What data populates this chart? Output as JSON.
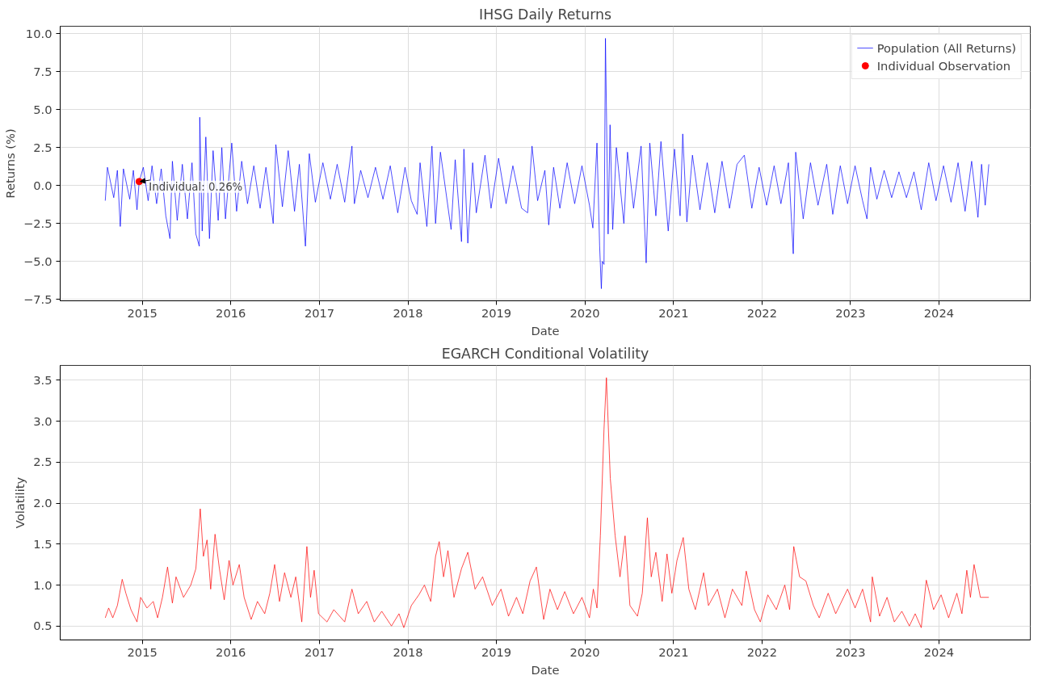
{
  "chart_data": [
    {
      "type": "line",
      "title": "IHSG Daily Returns",
      "xlabel": "Date",
      "ylabel": "Returns (%)",
      "xlim": [
        "2014-01-27",
        "2025-01-12"
      ],
      "xticks": [
        {
          "value": "2015-01-01",
          "label": "2015"
        },
        {
          "value": "2016-01-01",
          "label": "2016"
        },
        {
          "value": "2017-01-01",
          "label": "2017"
        },
        {
          "value": "2018-01-01",
          "label": "2018"
        },
        {
          "value": "2019-01-01",
          "label": "2019"
        },
        {
          "value": "2020-01-01",
          "label": "2020"
        },
        {
          "value": "2021-01-01",
          "label": "2021"
        },
        {
          "value": "2022-01-01",
          "label": "2022"
        },
        {
          "value": "2023-01-01",
          "label": "2023"
        },
        {
          "value": "2024-01-01",
          "label": "2024"
        }
      ],
      "ylim": [
        -7.6,
        10.5
      ],
      "yticks": [
        {
          "value": -7.5,
          "label": "−7.5"
        },
        {
          "value": -5,
          "label": "−5.0"
        },
        {
          "value": -2.5,
          "label": "−2.5"
        },
        {
          "value": 0,
          "label": "0.0"
        },
        {
          "value": 2.5,
          "label": "2.5"
        },
        {
          "value": 5,
          "label": "5.0"
        },
        {
          "value": 7.5,
          "label": "7.5"
        },
        {
          "value": 10,
          "label": "10.0"
        }
      ],
      "grid": true,
      "legend": "top right",
      "annotations": [
        {
          "text": "Individual: 0.26%",
          "x": "2014-12-19",
          "y": 0.26
        }
      ],
      "series": [
        {
          "name": "Population (All Returns)",
          "color": "#0000ff",
          "x": [
            "2014-08-01",
            "2014-08-10",
            "2014-09-05",
            "2014-09-20",
            "2014-10-02",
            "2014-10-15",
            "2014-11-10",
            "2014-11-25",
            "2014-12-10",
            "2014-12-19",
            "2015-01-05",
            "2015-01-25",
            "2015-02-10",
            "2015-03-01",
            "2015-03-20",
            "2015-04-08",
            "2015-04-25",
            "2015-05-05",
            "2015-05-25",
            "2015-06-15",
            "2015-07-06",
            "2015-07-25",
            "2015-08-10",
            "2015-08-24",
            "2015-08-26",
            "2015-09-05",
            "2015-09-20",
            "2015-10-05",
            "2015-10-20",
            "2015-11-10",
            "2015-11-25",
            "2015-12-10",
            "2016-01-05",
            "2016-01-25",
            "2016-02-15",
            "2016-03-10",
            "2016-04-05",
            "2016-05-01",
            "2016-05-25",
            "2016-06-24",
            "2016-07-05",
            "2016-08-01",
            "2016-08-25",
            "2016-09-20",
            "2016-10-10",
            "2016-11-04",
            "2016-11-20",
            "2016-12-15",
            "2017-01-15",
            "2017-02-15",
            "2017-03-15",
            "2017-04-15",
            "2017-05-15",
            "2017-05-25",
            "2017-06-20",
            "2017-07-20",
            "2017-08-20",
            "2017-09-20",
            "2017-10-20",
            "2017-11-20",
            "2017-12-20",
            "2018-01-15",
            "2018-02-08",
            "2018-02-20",
            "2018-03-20",
            "2018-04-10",
            "2018-04-25",
            "2018-05-15",
            "2018-06-28",
            "2018-07-15",
            "2018-08-10",
            "2018-08-20",
            "2018-09-05",
            "2018-09-25",
            "2018-10-10",
            "2018-11-15",
            "2018-12-10",
            "2019-01-10",
            "2019-02-10",
            "2019-03-10",
            "2019-04-15",
            "2019-05-10",
            "2019-05-28",
            "2019-06-20",
            "2019-07-20",
            "2019-08-05",
            "2019-08-25",
            "2019-09-20",
            "2019-10-20",
            "2019-11-20",
            "2019-12-20",
            "2020-01-20",
            "2020-02-03",
            "2020-02-20",
            "2020-03-02",
            "2020-03-09",
            "2020-03-13",
            "2020-03-20",
            "2020-03-26",
            "2020-04-06",
            "2020-04-14",
            "2020-04-25",
            "2020-05-10",
            "2020-06-10",
            "2020-06-25",
            "2020-07-20",
            "2020-08-20",
            "2020-09-10",
            "2020-09-25",
            "2020-10-20",
            "2020-11-10",
            "2020-12-10",
            "2021-01-05",
            "2021-01-28",
            "2021-02-08",
            "2021-02-25",
            "2021-03-20",
            "2021-04-20",
            "2021-05-20",
            "2021-06-20",
            "2021-07-20",
            "2021-08-20",
            "2021-09-20",
            "2021-10-20",
            "2021-11-20",
            "2021-12-20",
            "2022-01-20",
            "2022-02-20",
            "2022-03-20",
            "2022-04-20",
            "2022-05-10",
            "2022-05-20",
            "2022-06-20",
            "2022-07-20",
            "2022-08-20",
            "2022-09-25",
            "2022-10-20",
            "2022-11-20",
            "2022-12-20",
            "2023-01-20",
            "2023-02-20",
            "2023-03-10",
            "2023-03-25",
            "2023-04-20",
            "2023-05-20",
            "2023-06-20",
            "2023-07-20",
            "2023-08-20",
            "2023-09-20",
            "2023-10-20",
            "2023-11-20",
            "2023-12-20",
            "2024-01-20",
            "2024-02-20",
            "2024-03-20",
            "2024-04-18",
            "2024-05-15",
            "2024-06-10",
            "2024-06-25",
            "2024-07-10",
            "2024-07-25"
          ],
          "values": [
            -1.0,
            1.2,
            -0.8,
            1.0,
            -2.7,
            1.1,
            -0.9,
            1.0,
            -1.6,
            0.26,
            1.2,
            -1.0,
            1.3,
            -1.2,
            1.1,
            -2.0,
            -3.5,
            1.6,
            -2.3,
            1.4,
            -2.2,
            1.5,
            -3.2,
            -4.0,
            4.5,
            -3.0,
            3.2,
            -3.5,
            2.3,
            -2.3,
            2.5,
            -2.2,
            2.8,
            -1.7,
            1.6,
            -1.2,
            1.3,
            -1.5,
            1.2,
            -2.5,
            2.7,
            -1.4,
            2.3,
            -1.7,
            1.4,
            -4.0,
            2.1,
            -1.1,
            1.5,
            -0.9,
            1.4,
            -1.1,
            2.6,
            -1.2,
            1.0,
            -0.8,
            1.2,
            -0.9,
            1.3,
            -1.8,
            1.2,
            -1.0,
            -1.9,
            1.5,
            -2.7,
            2.6,
            -2.5,
            2.2,
            -2.9,
            1.7,
            -3.7,
            2.4,
            -3.8,
            1.5,
            -1.8,
            2.0,
            -1.5,
            1.8,
            -1.2,
            1.3,
            -1.5,
            -1.8,
            2.6,
            -1.0,
            1.0,
            -2.6,
            1.2,
            -1.5,
            1.5,
            -1.2,
            1.3,
            -1.3,
            -2.8,
            2.8,
            -4.0,
            -6.8,
            -5.0,
            -5.2,
            9.7,
            -3.2,
            4.0,
            -2.9,
            2.5,
            -2.5,
            2.2,
            -1.5,
            2.6,
            -5.1,
            2.8,
            -2.0,
            2.9,
            -3.0,
            2.4,
            -2.0,
            3.4,
            -2.4,
            2.0,
            -1.6,
            1.5,
            -1.8,
            1.6,
            -1.5,
            1.4,
            2.0,
            -1.5,
            1.2,
            -1.3,
            1.3,
            -1.2,
            1.5,
            -4.5,
            2.2,
            -2.2,
            1.5,
            -1.3,
            1.4,
            -1.9,
            1.3,
            -1.2,
            1.3,
            -1.0,
            -2.2,
            1.2,
            -0.9,
            1.0,
            -0.8,
            0.9,
            -0.8,
            0.9,
            -1.6,
            1.5,
            -1.0,
            1.3,
            -1.1,
            1.5,
            -1.7,
            1.6,
            -2.1,
            1.4,
            -1.3,
            1.4
          ]
        },
        {
          "name": "Individual Observation",
          "color": "#ff0000",
          "type": "scatter",
          "marker": "circle",
          "x": [
            "2014-12-19"
          ],
          "values": [
            0.26
          ]
        }
      ]
    },
    {
      "type": "line",
      "title": "EGARCH Conditional Volatility",
      "xlabel": "Date",
      "ylabel": "Volatility",
      "xlim": [
        "2014-01-27",
        "2025-01-12"
      ],
      "xticks": [
        {
          "value": "2015-01-01",
          "label": "2015"
        },
        {
          "value": "2016-01-01",
          "label": "2016"
        },
        {
          "value": "2017-01-01",
          "label": "2017"
        },
        {
          "value": "2018-01-01",
          "label": "2018"
        },
        {
          "value": "2019-01-01",
          "label": "2019"
        },
        {
          "value": "2020-01-01",
          "label": "2020"
        },
        {
          "value": "2021-01-01",
          "label": "2021"
        },
        {
          "value": "2022-01-01",
          "label": "2022"
        },
        {
          "value": "2023-01-01",
          "label": "2023"
        },
        {
          "value": "2024-01-01",
          "label": "2024"
        }
      ],
      "ylim": [
        0.33,
        3.68
      ],
      "yticks": [
        {
          "value": 0.5,
          "label": "0.5"
        },
        {
          "value": 1,
          "label": "1.0"
        },
        {
          "value": 1.5,
          "label": "1.5"
        },
        {
          "value": 2,
          "label": "2.0"
        },
        {
          "value": 2.5,
          "label": "2.5"
        },
        {
          "value": 3,
          "label": "3.0"
        },
        {
          "value": 3.5,
          "label": "3.5"
        }
      ],
      "grid": true,
      "series": [
        {
          "color": "#ff0000",
          "x": [
            "2014-08-01",
            "2014-08-15",
            "2014-09-01",
            "2014-09-20",
            "2014-10-10",
            "2014-10-25",
            "2014-11-15",
            "2014-12-10",
            "2014-12-25",
            "2015-01-20",
            "2015-02-15",
            "2015-03-05",
            "2015-03-25",
            "2015-04-15",
            "2015-05-05",
            "2015-05-20",
            "2015-06-20",
            "2015-07-20",
            "2015-08-10",
            "2015-08-28",
            "2015-09-10",
            "2015-09-25",
            "2015-10-10",
            "2015-10-28",
            "2015-11-15",
            "2015-12-05",
            "2015-12-25",
            "2016-01-10",
            "2016-02-05",
            "2016-02-25",
            "2016-03-25",
            "2016-04-20",
            "2016-05-20",
            "2016-06-10",
            "2016-06-30",
            "2016-07-20",
            "2016-08-10",
            "2016-09-05",
            "2016-09-25",
            "2016-10-20",
            "2016-11-10",
            "2016-11-25",
            "2016-12-10",
            "2016-12-28",
            "2017-02-01",
            "2017-03-01",
            "2017-04-15",
            "2017-05-15",
            "2017-06-10",
            "2017-07-15",
            "2017-08-15",
            "2017-09-15",
            "2017-10-25",
            "2017-11-25",
            "2017-12-15",
            "2018-01-15",
            "2018-02-15",
            "2018-03-10",
            "2018-04-05",
            "2018-04-25",
            "2018-05-10",
            "2018-05-28",
            "2018-06-15",
            "2018-07-10",
            "2018-08-10",
            "2018-09-05",
            "2018-10-05",
            "2018-11-05",
            "2018-12-15",
            "2019-01-20",
            "2019-02-20",
            "2019-03-25",
            "2019-04-20",
            "2019-05-20",
            "2019-06-15",
            "2019-07-15",
            "2019-08-10",
            "2019-09-10",
            "2019-10-10",
            "2019-11-15",
            "2019-12-20",
            "2020-01-20",
            "2020-02-05",
            "2020-02-20",
            "2020-03-05",
            "2020-03-20",
            "2020-03-30",
            "2020-04-15",
            "2020-05-05",
            "2020-05-25",
            "2020-06-15",
            "2020-07-05",
            "2020-08-05",
            "2020-08-25",
            "2020-09-15",
            "2020-10-01",
            "2020-10-20",
            "2020-11-15",
            "2020-12-05",
            "2020-12-25",
            "2021-01-15",
            "2021-02-10",
            "2021-03-05",
            "2021-04-01",
            "2021-05-05",
            "2021-05-25",
            "2021-07-01",
            "2021-08-01",
            "2021-09-01",
            "2021-10-10",
            "2021-10-28",
            "2021-12-01",
            "2021-12-25",
            "2022-01-25",
            "2022-03-01",
            "2022-04-05",
            "2022-04-25",
            "2022-05-12",
            "2022-06-05",
            "2022-07-01",
            "2022-08-01",
            "2022-08-25",
            "2022-10-01",
            "2022-11-01",
            "2022-12-20",
            "2023-01-20",
            "2023-02-20",
            "2023-03-25",
            "2023-04-01",
            "2023-05-01",
            "2023-06-01",
            "2023-07-01",
            "2023-08-01",
            "2023-09-01",
            "2023-09-25",
            "2023-10-20",
            "2023-11-10",
            "2023-12-10",
            "2024-01-10",
            "2024-02-10",
            "2024-03-15",
            "2024-04-05",
            "2024-04-25",
            "2024-05-10",
            "2024-05-25",
            "2024-06-20",
            "2024-07-25"
          ],
          "values": [
            0.6,
            0.72,
            0.6,
            0.75,
            1.07,
            0.9,
            0.7,
            0.55,
            0.85,
            0.72,
            0.8,
            0.6,
            0.85,
            1.22,
            0.78,
            1.1,
            0.85,
            1.0,
            1.2,
            1.93,
            1.35,
            1.55,
            0.95,
            1.62,
            1.2,
            0.82,
            1.3,
            1.0,
            1.25,
            0.85,
            0.58,
            0.8,
            0.65,
            0.9,
            1.25,
            0.8,
            1.15,
            0.85,
            1.1,
            0.55,
            1.47,
            0.85,
            1.18,
            0.65,
            0.55,
            0.7,
            0.55,
            0.95,
            0.65,
            0.8,
            0.55,
            0.68,
            0.5,
            0.65,
            0.48,
            0.75,
            0.88,
            1.0,
            0.8,
            1.35,
            1.53,
            1.1,
            1.42,
            0.85,
            1.2,
            1.4,
            0.95,
            1.1,
            0.75,
            0.95,
            0.62,
            0.85,
            0.65,
            1.05,
            1.22,
            0.58,
            0.95,
            0.7,
            0.92,
            0.65,
            0.85,
            0.6,
            0.95,
            0.72,
            1.6,
            2.9,
            3.53,
            2.3,
            1.6,
            1.1,
            1.6,
            0.75,
            0.62,
            0.9,
            1.82,
            1.1,
            1.4,
            0.8,
            1.38,
            0.9,
            1.3,
            1.58,
            0.95,
            0.7,
            1.15,
            0.75,
            0.95,
            0.6,
            0.95,
            0.75,
            1.17,
            0.7,
            0.55,
            0.88,
            0.7,
            1.0,
            0.7,
            1.47,
            1.1,
            1.05,
            0.75,
            0.6,
            0.9,
            0.65,
            0.95,
            0.72,
            0.95,
            0.55,
            1.1,
            0.62,
            0.85,
            0.55,
            0.68,
            0.5,
            0.65,
            0.48,
            1.06,
            0.7,
            0.88,
            0.6,
            0.9,
            0.65,
            1.18,
            0.85,
            1.25,
            0.85,
            0.85
          ]
        }
      ]
    }
  ]
}
